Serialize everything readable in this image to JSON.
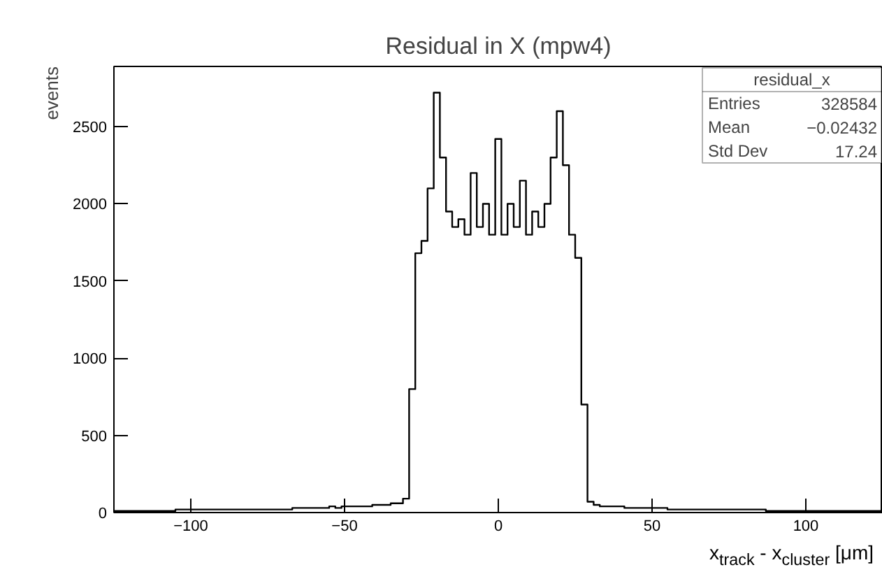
{
  "chart_data": {
    "type": "histogram",
    "title": "Residual in X (mpw4)",
    "xlabel": "x$_{track}$ - x$_{cluster}$ [μm]",
    "ylabel": "events",
    "bins": [
      -125,
      -123,
      -121,
      -119,
      -117,
      -115,
      -113,
      -111,
      -109,
      -107,
      -105,
      -103,
      -101,
      -99,
      -97,
      -95,
      -93,
      -91,
      -89,
      -87,
      -85,
      -83,
      -81,
      -79,
      -77,
      -75,
      -73,
      -71,
      -69,
      -67,
      -65,
      -63,
      -61,
      -59,
      -57,
      -55,
      -53,
      -51,
      -49,
      -47,
      -45,
      -43,
      -41,
      -39,
      -37,
      -35,
      -33,
      -31,
      -29,
      -27,
      -25,
      -23,
      -21,
      -19,
      -17,
      -15,
      -13,
      -11,
      -9,
      -7,
      -5,
      -3,
      -1,
      1,
      3,
      5,
      7,
      9,
      11,
      13,
      15,
      17,
      19,
      21,
      23,
      25,
      27,
      29,
      31,
      33,
      35,
      37,
      39,
      41,
      43,
      45,
      47,
      49,
      51,
      53,
      55,
      57,
      59,
      61,
      63,
      65,
      67,
      69,
      71,
      73,
      75,
      77,
      79,
      81,
      83,
      85,
      87,
      89,
      91,
      93,
      95,
      97,
      99,
      101,
      103,
      105,
      107,
      109,
      111,
      113,
      115,
      117,
      119,
      121,
      123,
      125
    ],
    "values": [
      10,
      10,
      10,
      10,
      10,
      10,
      10,
      10,
      10,
      10,
      20,
      20,
      20,
      20,
      20,
      20,
      20,
      20,
      20,
      20,
      20,
      20,
      20,
      20,
      20,
      20,
      20,
      20,
      20,
      30,
      30,
      30,
      30,
      30,
      30,
      40,
      30,
      40,
      40,
      40,
      40,
      40,
      50,
      50,
      50,
      60,
      60,
      90,
      800,
      1680,
      1760,
      2100,
      2720,
      2300,
      1950,
      1850,
      1900,
      1800,
      2200,
      1850,
      2000,
      1800,
      2420,
      1800,
      2000,
      1850,
      2150,
      1800,
      1950,
      1850,
      2000,
      2300,
      2600,
      2250,
      1800,
      1650,
      700,
      70,
      50,
      40,
      40,
      40,
      40,
      30,
      30,
      30,
      30,
      30,
      30,
      30,
      20,
      20,
      20,
      20,
      20,
      20,
      20,
      20,
      20,
      20,
      20,
      20,
      20,
      20,
      20,
      20,
      10,
      10,
      10,
      10,
      10,
      10,
      10,
      10,
      10,
      10,
      10,
      10,
      10,
      10,
      10,
      10,
      10,
      10,
      10
    ],
    "color": "#000000",
    "xlim": [
      -125,
      125
    ],
    "ylim": [
      0,
      2890
    ],
    "xticks": [
      -100,
      -50,
      0,
      50,
      100
    ],
    "yticks": [
      0,
      500,
      1000,
      1500,
      2000,
      2500
    ],
    "grid": false,
    "annotations": [
      "residual_x",
      "Entries",
      "328584",
      "Mean",
      "−0.02432",
      "Std Dev",
      "17.24"
    ]
  }
}
